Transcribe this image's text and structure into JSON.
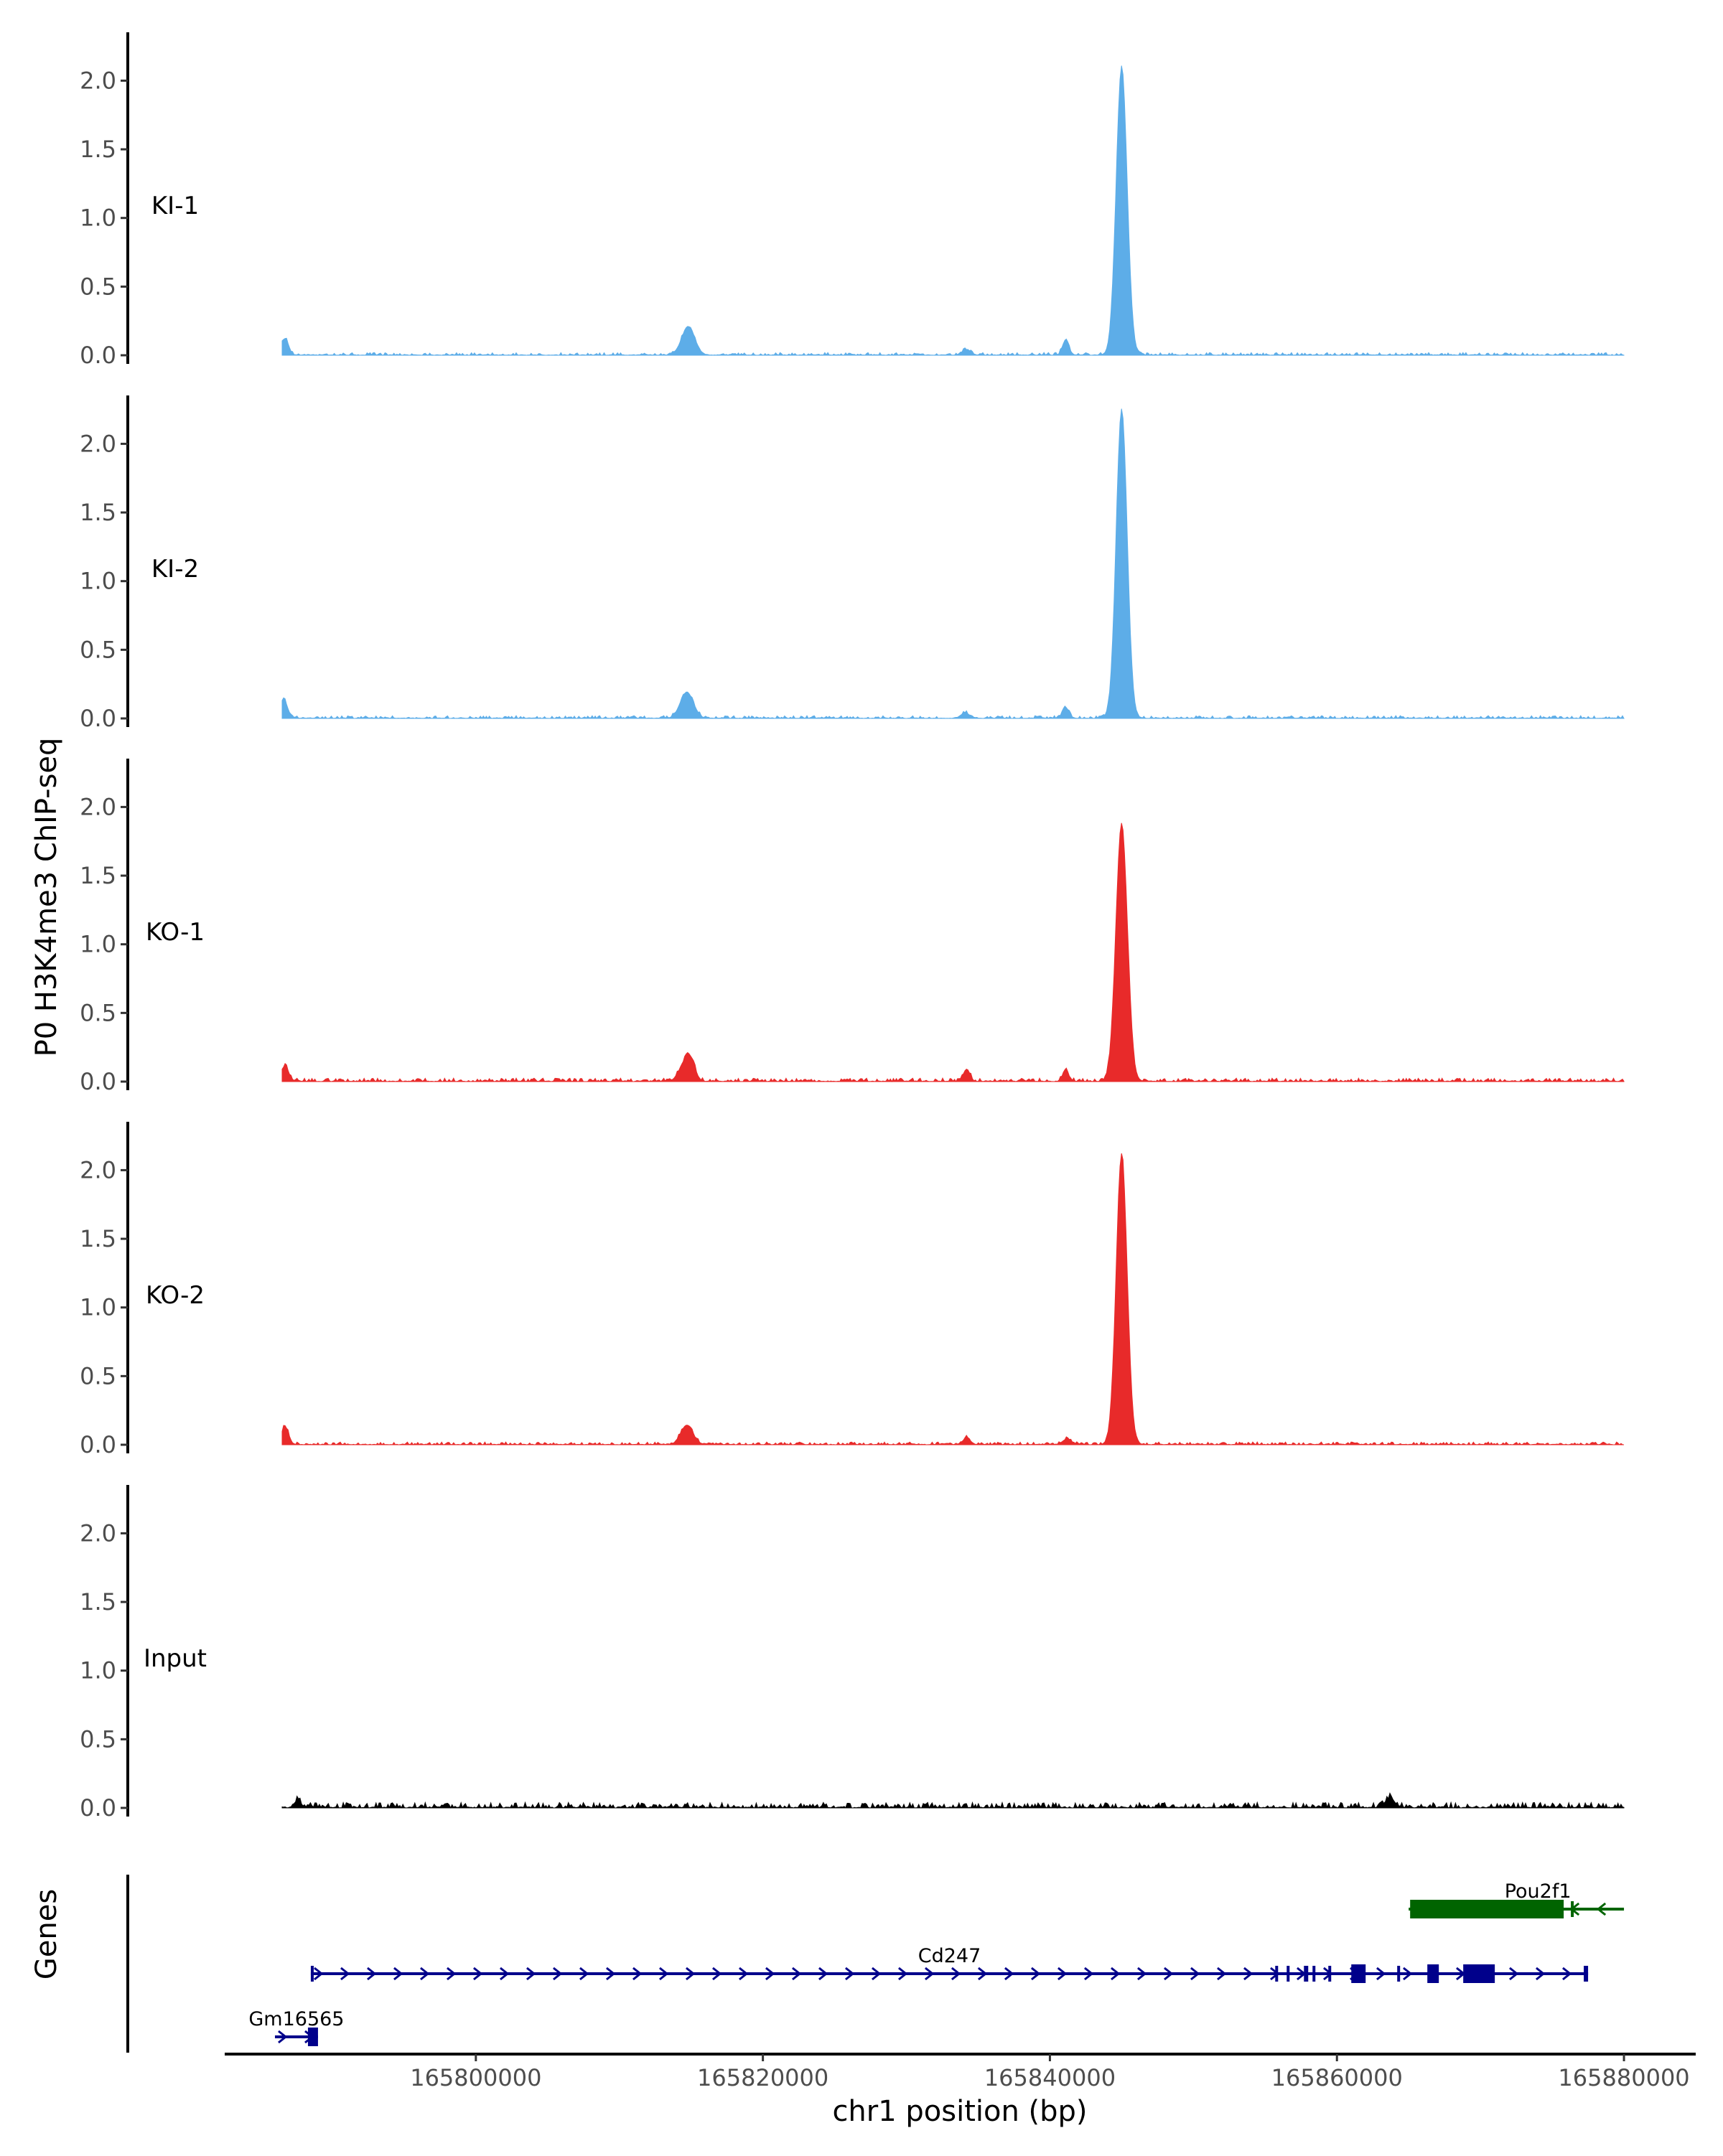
{
  "chart_data": {
    "type": "area",
    "ylabel": "P0 H3K4me3 ChIP-seq",
    "xlabel": "chr1 position (bp)",
    "genes_label": "Genes",
    "xlim": [
      165782500,
      165885000
    ],
    "x_ticks": [
      165800000,
      165820000,
      165840000,
      165860000,
      165880000
    ],
    "x_tick_labels": [
      "165800000",
      "165820000",
      "165840000",
      "165860000",
      "165880000"
    ],
    "ylim": [
      0,
      2.3
    ],
    "y_ticks": [
      0,
      0.5,
      1,
      1.5,
      2
    ],
    "y_tick_labels": [
      "0.0",
      "0.5",
      "1.0",
      "1.5",
      "2.0"
    ],
    "track_range": [
      165786500,
      165880000
    ],
    "tracks": [
      {
        "name": "KI-1",
        "color": "#5dade8",
        "peaks": [
          [
            165786700,
            0.12,
            250
          ],
          [
            165814800,
            0.21,
            450
          ],
          [
            165841100,
            0.11,
            220
          ],
          [
            165845000,
            2.1,
            380
          ],
          [
            165834200,
            0.04,
            300
          ]
        ],
        "noise": 0.02
      },
      {
        "name": "KI-2",
        "color": "#5dade8",
        "peaks": [
          [
            165786600,
            0.14,
            250
          ],
          [
            165814700,
            0.19,
            450
          ],
          [
            165841100,
            0.08,
            220
          ],
          [
            165845000,
            2.25,
            380
          ],
          [
            165834100,
            0.04,
            300
          ]
        ],
        "noise": 0.02
      },
      {
        "name": "KO-1",
        "color": "#e82a2a",
        "peaks": [
          [
            165786700,
            0.11,
            250
          ],
          [
            165814500,
            0.12,
            380
          ],
          [
            165815000,
            0.13,
            300
          ],
          [
            165834200,
            0.09,
            220
          ],
          [
            165841100,
            0.09,
            200
          ],
          [
            165845000,
            1.88,
            400
          ]
        ],
        "noise": 0.025
      },
      {
        "name": "KO-2",
        "color": "#e82a2a",
        "peaks": [
          [
            165786700,
            0.13,
            250
          ],
          [
            165814700,
            0.14,
            420
          ],
          [
            165834200,
            0.05,
            250
          ],
          [
            165841200,
            0.04,
            300
          ],
          [
            165845000,
            2.12,
            380
          ]
        ],
        "noise": 0.02
      },
      {
        "name": "Input",
        "color": "#000000",
        "peaks": [
          [
            165787600,
            0.06,
            200
          ],
          [
            165863700,
            0.07,
            300
          ]
        ],
        "noise": 0.04
      }
    ],
    "genes": [
      {
        "name": "Pou2f1",
        "color": "#006400",
        "row": 0,
        "strand": "-",
        "start": 165865000,
        "end": 165880000,
        "blocks": [
          [
            165865100,
            165875800,
            "thick"
          ],
          [
            165876300,
            165876500,
            "thin"
          ]
        ]
      },
      {
        "name": "Cd247",
        "color": "#00008b",
        "row": 1,
        "strand": "+",
        "start": 165788500,
        "end": 165877500,
        "blocks": [
          [
            165788500,
            165788700,
            "thin"
          ],
          [
            165855700,
            165855900,
            "thin"
          ],
          [
            165856500,
            165856700,
            "thin"
          ],
          [
            165857700,
            165858000,
            "thin"
          ],
          [
            165858300,
            165858400,
            "thin"
          ],
          [
            165859400,
            165859600,
            "thin"
          ],
          [
            165861000,
            165862000,
            "thick"
          ],
          [
            165864200,
            165864400,
            "thin"
          ],
          [
            165866300,
            165867100,
            "thick"
          ],
          [
            165868800,
            165871000,
            "thick"
          ],
          [
            165877200,
            165877500,
            "thin"
          ]
        ]
      },
      {
        "name": "Gm16565",
        "color": "#00008b",
        "row": 2,
        "strand": "+",
        "start": 165786000,
        "end": 165789000,
        "blocks": [
          [
            165788300,
            165789000,
            "thick"
          ]
        ]
      }
    ]
  }
}
